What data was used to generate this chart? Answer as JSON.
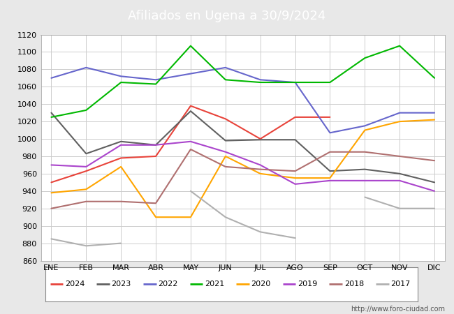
{
  "title": "Afiliados en Ugena a 30/9/2024",
  "header_bg": "#4472c4",
  "months": [
    "ENE",
    "FEB",
    "MAR",
    "ABR",
    "MAY",
    "JUN",
    "JUL",
    "AGO",
    "SEP",
    "OCT",
    "NOV",
    "DIC"
  ],
  "series": {
    "2024": {
      "values": [
        950,
        963,
        978,
        980,
        1038,
        1023,
        1000,
        1025,
        1025,
        null,
        null,
        null
      ],
      "color": "#e8433a",
      "linewidth": 1.5
    },
    "2023": {
      "values": [
        1030,
        983,
        997,
        993,
        1032,
        998,
        999,
        999,
        963,
        965,
        960,
        950
      ],
      "color": "#606060",
      "linewidth": 1.5
    },
    "2022": {
      "values": [
        1070,
        1082,
        1072,
        1068,
        1075,
        1082,
        1068,
        1065,
        1007,
        1015,
        1030,
        1030
      ],
      "color": "#6666cc",
      "linewidth": 1.5
    },
    "2021": {
      "values": [
        1025,
        1033,
        1065,
        1063,
        1107,
        1068,
        1065,
        1065,
        1065,
        1093,
        1107,
        1070
      ],
      "color": "#00b800",
      "linewidth": 1.5
    },
    "2020": {
      "values": [
        938,
        942,
        968,
        910,
        910,
        980,
        960,
        955,
        955,
        1010,
        1020,
        1022
      ],
      "color": "#ffa500",
      "linewidth": 1.5
    },
    "2019": {
      "values": [
        970,
        968,
        993,
        993,
        997,
        985,
        970,
        948,
        952,
        952,
        952,
        940
      ],
      "color": "#aa44cc",
      "linewidth": 1.5
    },
    "2018": {
      "values": [
        920,
        928,
        928,
        926,
        988,
        968,
        965,
        963,
        985,
        985,
        980,
        975
      ],
      "color": "#b07070",
      "linewidth": 1.5
    },
    "2017": {
      "values": [
        885,
        877,
        880,
        null,
        940,
        910,
        893,
        886,
        null,
        933,
        920,
        920
      ],
      "color": "#b0b0b0",
      "linewidth": 1.5
    }
  },
  "ylim": [
    860,
    1120
  ],
  "yticks": [
    860,
    880,
    900,
    920,
    940,
    960,
    980,
    1000,
    1020,
    1040,
    1060,
    1080,
    1100,
    1120
  ],
  "grid_color": "#cccccc",
  "fig_bg": "#e8e8e8",
  "plot_bg": "#ffffff",
  "footer_text": "http://www.foro-ciudad.com",
  "legend_order": [
    "2024",
    "2023",
    "2022",
    "2021",
    "2020",
    "2019",
    "2018",
    "2017"
  ]
}
